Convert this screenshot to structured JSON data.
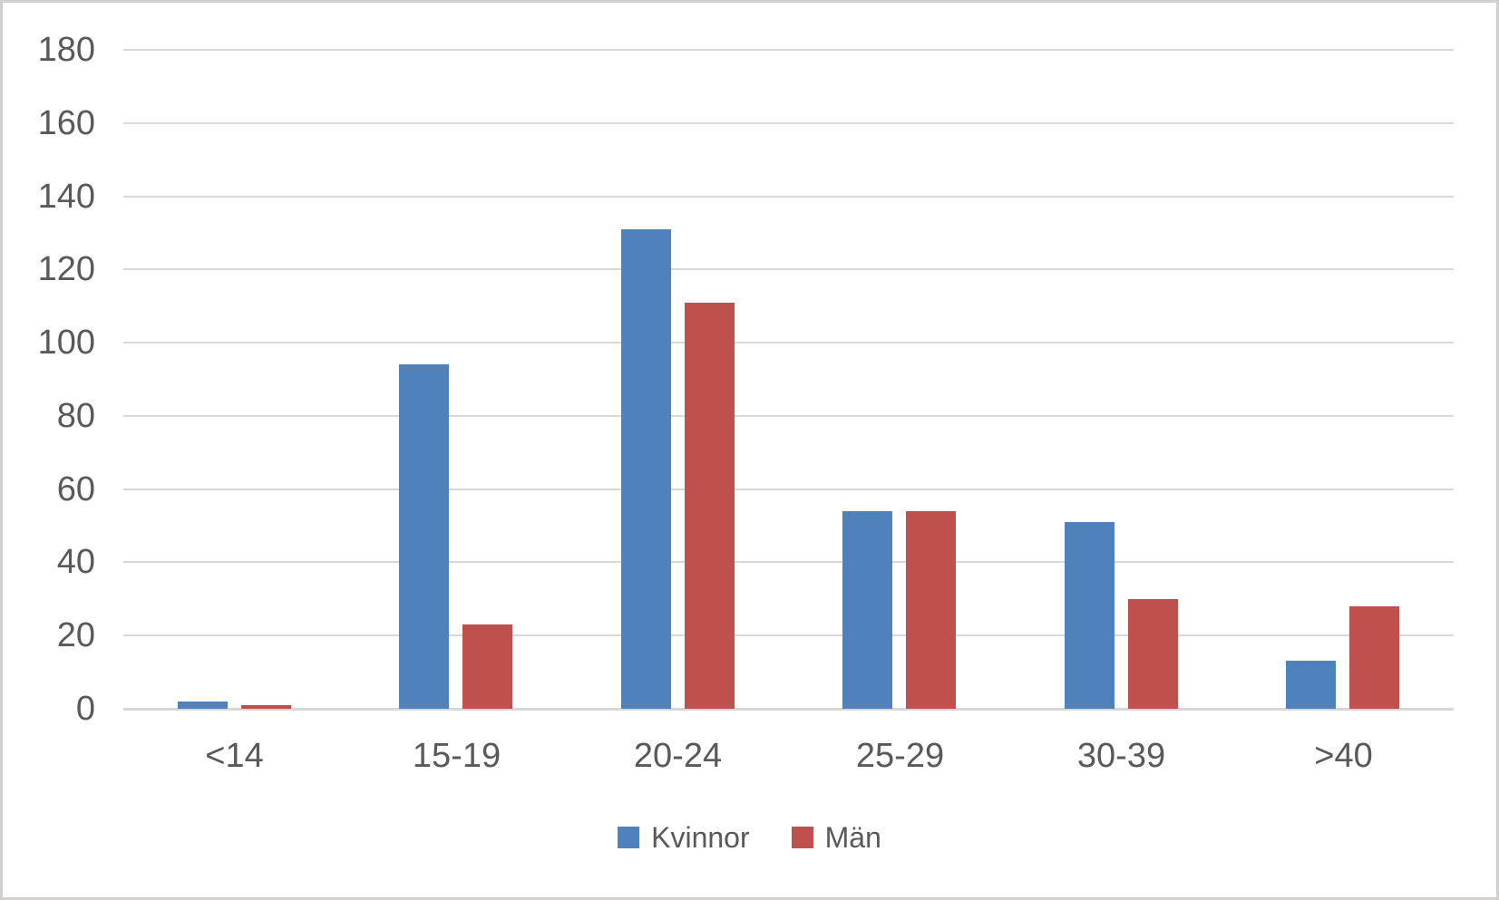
{
  "chart_data": {
    "type": "bar",
    "title": "",
    "xlabel": "",
    "ylabel": "",
    "categories": [
      "<14",
      "15-19",
      "20-24",
      "25-29",
      "30-39",
      ">40"
    ],
    "series": [
      {
        "name": "Kvinnor",
        "color": "#4F81BD",
        "values": [
          2,
          94,
          131,
          54,
          51,
          13
        ]
      },
      {
        "name": "Män",
        "color": "#C0504D",
        "values": [
          1,
          23,
          111,
          54,
          30,
          28
        ]
      }
    ],
    "ylim": [
      0,
      180
    ],
    "yticks": [
      0,
      20,
      40,
      60,
      80,
      100,
      120,
      140,
      160,
      180
    ],
    "grid": true,
    "legend_position": "bottom"
  },
  "colors": {
    "kvinnor_bar": "#4F81BD",
    "man_bar": "#C0504D",
    "gridline": "#D9D9D9",
    "axis_text": "#595959",
    "frame_border": "#D2CFCF",
    "background": "#FFFFFF"
  }
}
